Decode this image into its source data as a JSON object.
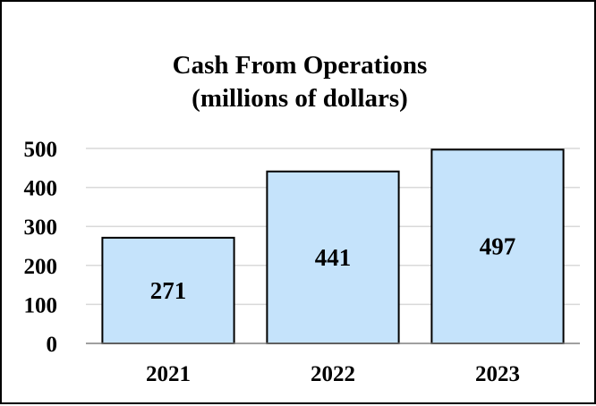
{
  "chart_data": {
    "type": "bar",
    "title": "Cash From Operations",
    "subtitle": "(millions of dollars)",
    "categories": [
      "2021",
      "2022",
      "2023"
    ],
    "values": [
      271,
      441,
      497
    ],
    "data_labels": [
      "271",
      "441",
      "497"
    ],
    "ylim": [
      0,
      500
    ],
    "yticks": [
      0,
      100,
      200,
      300,
      400,
      500
    ],
    "ytick_labels": [
      "0",
      "100",
      "200",
      "300",
      "400",
      "500"
    ],
    "grid": true,
    "legend": "none",
    "colors": {
      "bar_fill": "#c5e3fb",
      "bar_stroke": "#000000",
      "grid": "#d9d9d9",
      "axis": "#808080"
    }
  }
}
